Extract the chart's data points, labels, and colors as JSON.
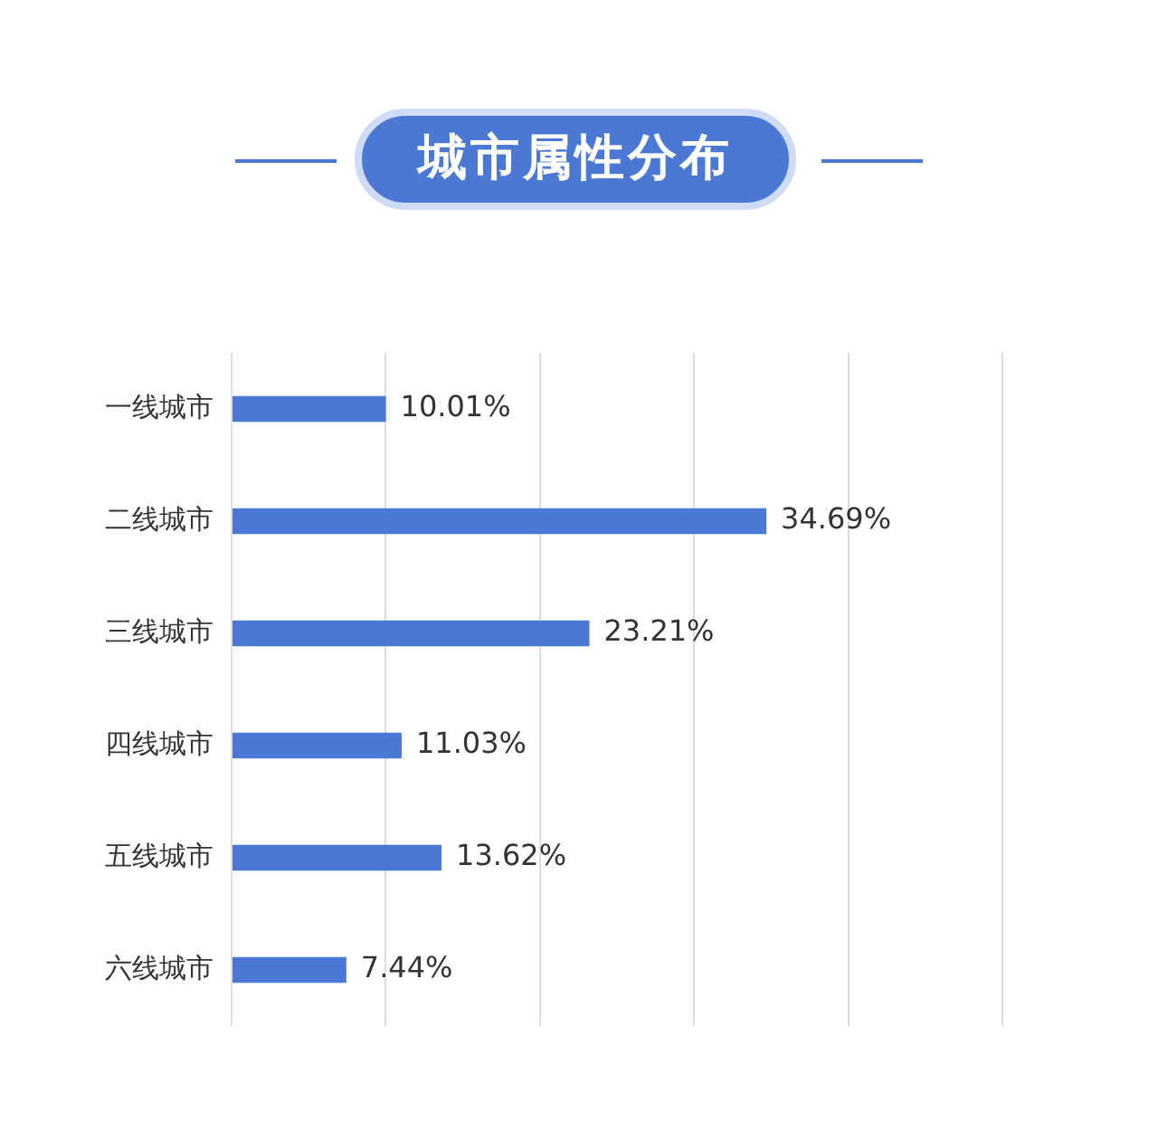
{
  "chart_data": {
    "type": "bar",
    "orientation": "horizontal",
    "title": "城市属性分布",
    "categories": [
      "一线城市",
      "二线城市",
      "三线城市",
      "四线城市",
      "五线城市",
      "六线城市"
    ],
    "values": [
      10.01,
      34.69,
      23.21,
      11.03,
      13.62,
      7.44
    ],
    "value_labels": [
      "10.01%",
      "34.69%",
      "23.21%",
      "11.03%",
      "13.62%",
      "7.44%"
    ],
    "color": "#4a78d4",
    "xlim": [
      0,
      50
    ],
    "xticks": [
      {
        "value": 0,
        "label": null
      },
      {
        "value": 10,
        "label": null
      },
      {
        "value": 20,
        "label": null
      },
      {
        "value": 30,
        "label": null
      }
    ],
    "grid": "x",
    "tick_labels": "y",
    "legend": false
  }
}
